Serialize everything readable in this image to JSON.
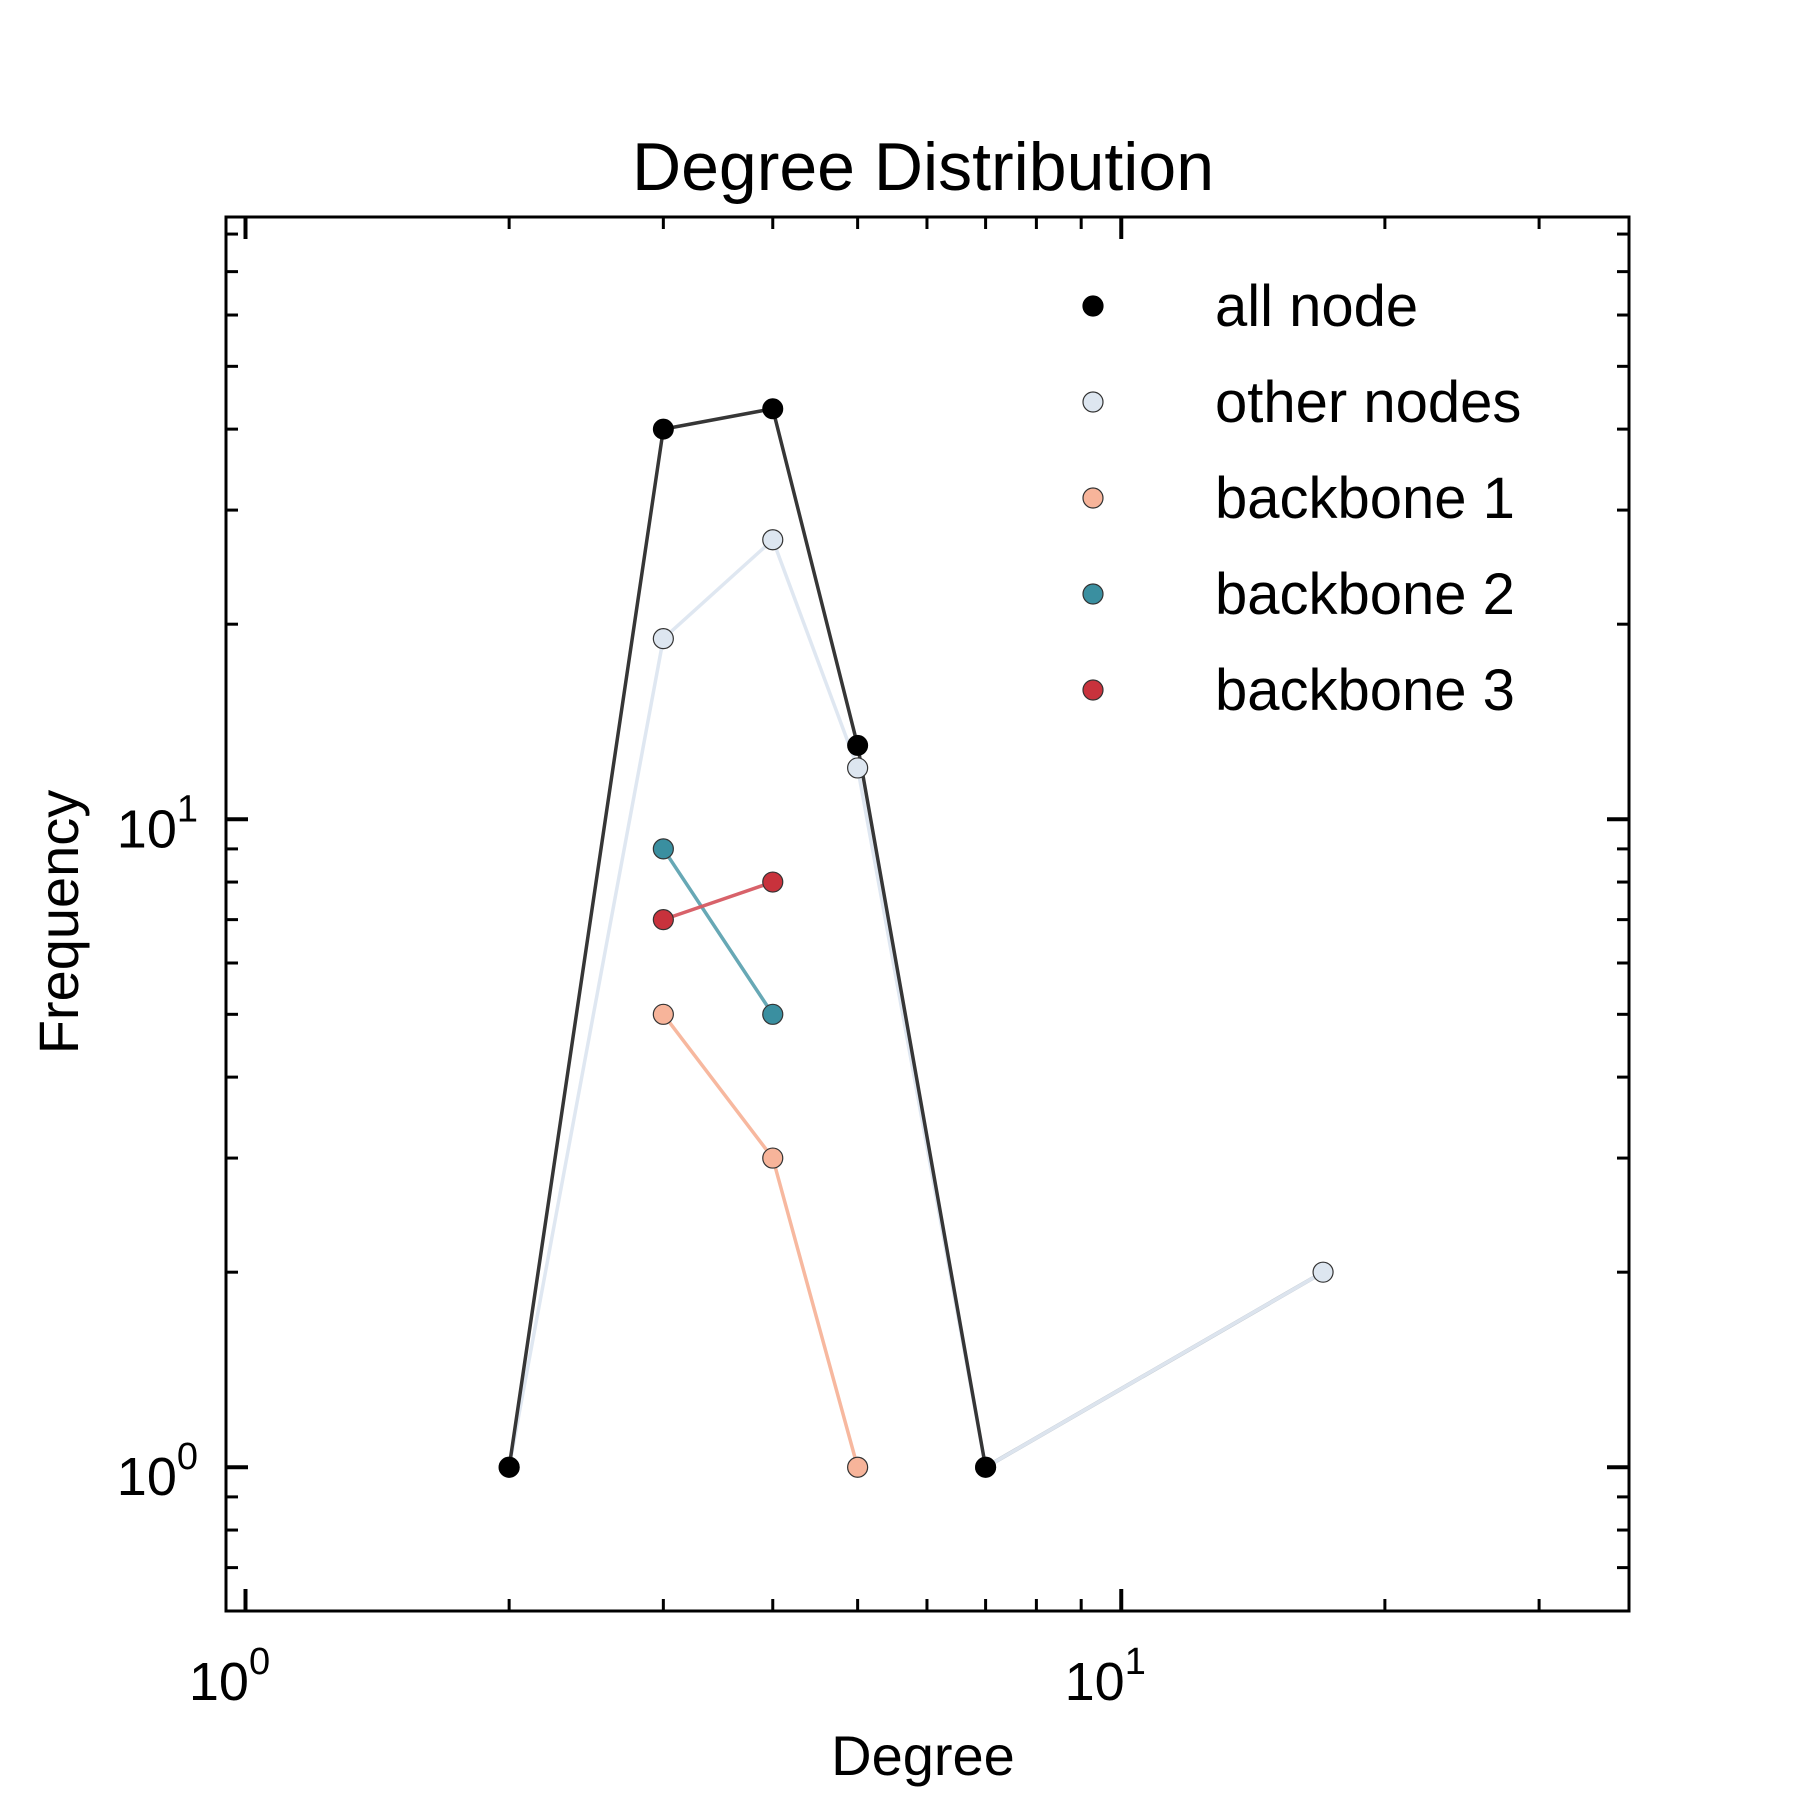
{
  "chart_data": {
    "type": "line",
    "title": "Degree Distribution",
    "xlabel": "Degree",
    "ylabel": "Frequency",
    "x_scale": "log",
    "y_scale": "log",
    "xlim": [
      0.95,
      38
    ],
    "ylim": [
      0.6,
      85
    ],
    "grid": false,
    "legend_position": "top-right",
    "x_major_ticks": [
      {
        "value": 1,
        "base": "10",
        "exp": "0"
      },
      {
        "value": 10,
        "base": "10",
        "exp": "1"
      }
    ],
    "y_major_ticks": [
      {
        "value": 1,
        "base": "10",
        "exp": "0"
      },
      {
        "value": 10,
        "base": "10",
        "exp": "1"
      }
    ],
    "series": [
      {
        "name": "all node",
        "color": "#000000",
        "line_color": "#2b2b2b",
        "x": [
          2,
          3,
          4,
          5,
          7
        ],
        "y": [
          1,
          40,
          43,
          13,
          1
        ]
      },
      {
        "name": "other nodes",
        "color": "#dde6f0",
        "line_color": "#dde6f0",
        "x": [
          2,
          3,
          4,
          5,
          7,
          17
        ],
        "y": [
          1,
          19,
          27,
          12,
          1,
          2
        ]
      },
      {
        "name": "backbone 1",
        "color": "#f7b49a",
        "line_color": "#f7b49a",
        "x": [
          3,
          4,
          5
        ],
        "y": [
          5,
          3,
          1
        ]
      },
      {
        "name": "backbone 2",
        "color": "#3a8fa0",
        "line_color": "#5fa3b1",
        "x": [
          3,
          4
        ],
        "y": [
          9,
          5
        ]
      },
      {
        "name": "backbone 3",
        "color": "#c8323c",
        "line_color": "#d65a62",
        "x": [
          3,
          4
        ],
        "y": [
          7,
          8
        ]
      }
    ],
    "extra_segments": [
      {
        "color": "#b9c0c8",
        "x": [
          7,
          17
        ],
        "y": [
          1,
          2
        ]
      }
    ]
  }
}
